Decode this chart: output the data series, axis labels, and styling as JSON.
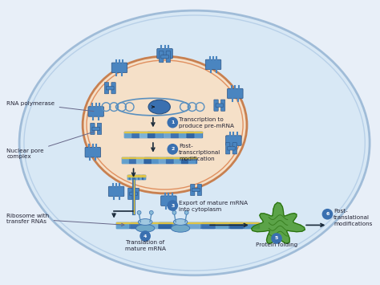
{
  "bg_color": "#e8eff8",
  "cell_fill": "#d8e8f5",
  "cell_edge": "#a0bcd8",
  "nucleus_fill": "#f5e0c8",
  "nucleus_edge": "#c88050",
  "arrow_color": "#1a2a3a",
  "step_circle_color": "#3a70b0",
  "label_color": "#222233",
  "rna_pol_color": "#4a85c0",
  "pore_color": "#4a85c0",
  "mrna_blue": "#3a70b0",
  "mrna_light": "#7ab0d8",
  "mrna_yellow": "#e8c840",
  "ribosome_light": "#a0c8e0",
  "ribosome_mid": "#70a8c8",
  "protein_green": "#4a9a30",
  "protein_dark": "#2a7010",
  "labels": {
    "rna_polymerase": "RNA polymerase",
    "nuclear_pore": "Nuclear pore\ncomplex",
    "ribosome": "Ribosome with\ntransfer RNAs",
    "step1": "Transcription to\nproduce pre-mRNA",
    "step2": "Post-\ntranscriptional\nmodification",
    "step3": "Export of mature mRNA\ninto cytoplasm",
    "step4": "Translation of\nmature mRNA",
    "step5": "Protein folding",
    "step6": "Post-\ntranslational\nmodifications"
  },
  "fig_w": 4.74,
  "fig_h": 3.55,
  "dpi": 100
}
